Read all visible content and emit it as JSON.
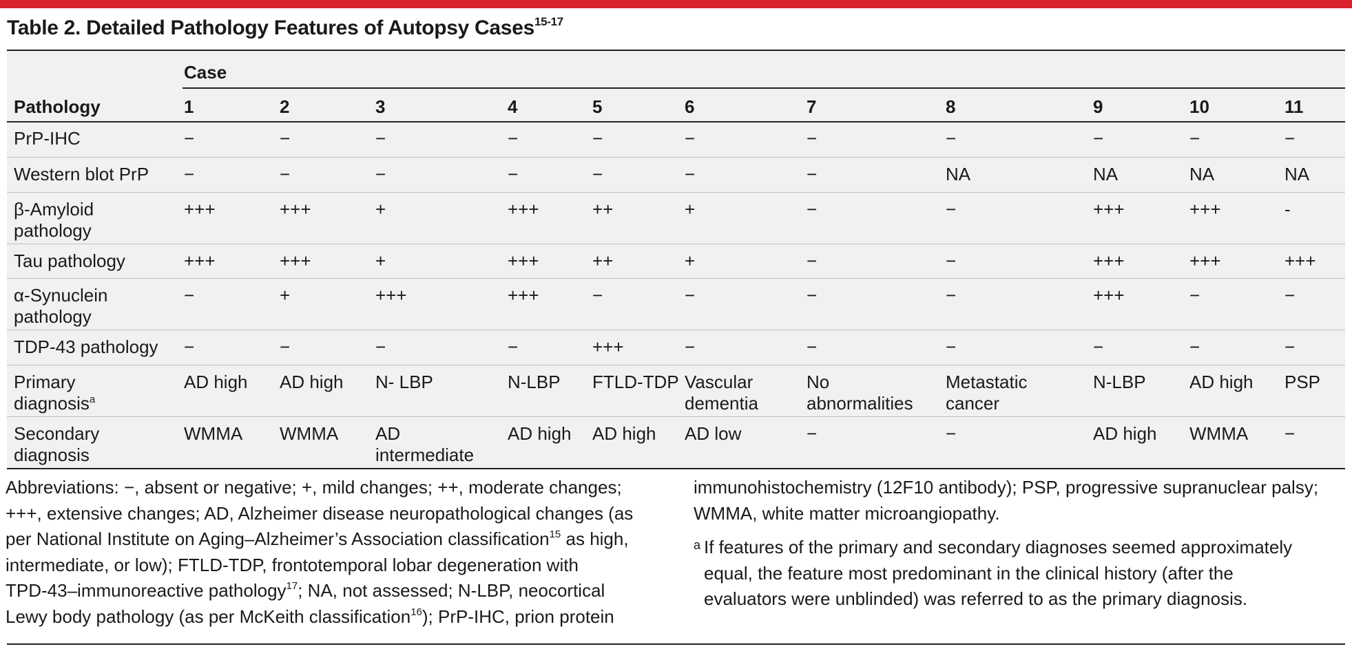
{
  "title": {
    "text": "Table 2. Detailed Pathology Features of Autopsy Cases",
    "sup": "15-17"
  },
  "table": {
    "stub_header": "Pathology",
    "spanner": "Case",
    "columns": [
      "1",
      "2",
      "3",
      "4",
      "5",
      "6",
      "7",
      "8",
      "9",
      "10",
      "11"
    ],
    "rows": [
      {
        "label": [
          "PrP-IHC"
        ],
        "cells": [
          [
            "−"
          ],
          [
            "−"
          ],
          [
            "−"
          ],
          [
            "−"
          ],
          [
            "−"
          ],
          [
            "−"
          ],
          [
            "−"
          ],
          [
            "−"
          ],
          [
            "−"
          ],
          [
            "−"
          ],
          [
            "−"
          ]
        ]
      },
      {
        "label": [
          "Western blot PrP"
        ],
        "cells": [
          [
            "−"
          ],
          [
            "−"
          ],
          [
            "−"
          ],
          [
            "−"
          ],
          [
            "−"
          ],
          [
            "−"
          ],
          [
            "−"
          ],
          [
            "NA"
          ],
          [
            "NA"
          ],
          [
            "NA"
          ],
          [
            "NA"
          ]
        ]
      },
      {
        "label": [
          "β-Amyloid",
          "pathology"
        ],
        "cells": [
          [
            "+++"
          ],
          [
            "+++"
          ],
          [
            "+"
          ],
          [
            "+++"
          ],
          [
            "++"
          ],
          [
            "+"
          ],
          [
            "−"
          ],
          [
            "−"
          ],
          [
            "+++"
          ],
          [
            "+++"
          ],
          [
            "-"
          ]
        ]
      },
      {
        "label": [
          "Tau pathology"
        ],
        "cells": [
          [
            "+++"
          ],
          [
            "+++"
          ],
          [
            "+"
          ],
          [
            "+++"
          ],
          [
            "++"
          ],
          [
            "+"
          ],
          [
            "−"
          ],
          [
            "−"
          ],
          [
            "+++"
          ],
          [
            "+++"
          ],
          [
            "+++"
          ]
        ]
      },
      {
        "label": [
          "α-Synuclein",
          "pathology"
        ],
        "cells": [
          [
            "−"
          ],
          [
            "+"
          ],
          [
            "+++"
          ],
          [
            "+++"
          ],
          [
            "−"
          ],
          [
            "−"
          ],
          [
            "−"
          ],
          [
            "−"
          ],
          [
            "+++"
          ],
          [
            "−"
          ],
          [
            "−"
          ]
        ]
      },
      {
        "label": [
          "TDP-43 pathology"
        ],
        "cells": [
          [
            "−"
          ],
          [
            "−"
          ],
          [
            "−"
          ],
          [
            "−"
          ],
          [
            "+++"
          ],
          [
            "−"
          ],
          [
            "−"
          ],
          [
            "−"
          ],
          [
            "−"
          ],
          [
            "−"
          ],
          [
            "−"
          ]
        ]
      },
      {
        "label": [
          "Primary",
          "diagnosis"
        ],
        "label_sup": "a",
        "cells": [
          [
            "AD high"
          ],
          [
            "AD high"
          ],
          [
            "N- LBP"
          ],
          [
            "N-LBP"
          ],
          [
            "FTLD-TDP"
          ],
          [
            "Vascular",
            "dementia"
          ],
          [
            "No",
            "abnormalities"
          ],
          [
            "Metastatic",
            "cancer"
          ],
          [
            "N-LBP"
          ],
          [
            "AD high"
          ],
          [
            "PSP"
          ]
        ]
      },
      {
        "label": [
          "Secondary",
          "diagnosis"
        ],
        "cells": [
          [
            "WMMA"
          ],
          [
            "WMMA"
          ],
          [
            "AD",
            "intermediate"
          ],
          [
            "AD high"
          ],
          [
            "AD high"
          ],
          [
            "AD low"
          ],
          [
            "−"
          ],
          [
            "−"
          ],
          [
            "AD high"
          ],
          [
            "WMMA"
          ],
          [
            "−"
          ]
        ]
      }
    ]
  },
  "footnotes": {
    "abbreviations": [
      {
        "t": "Abbreviations: −, absent or negative; +, mild changes; ++, moderate changes;"
      },
      {
        "t": "+++, extensive changes; AD, Alzheimer disease neuropathological changes (as"
      },
      {
        "t": "per National Institute on Aging–Alzheimer’s Association classification",
        "sup": "15",
        "t2": " as high,"
      },
      {
        "t": "intermediate, or low); FTLD-TDP, frontotemporal lobar degeneration with"
      },
      {
        "t": "TPD-43–immunoreactive pathology",
        "sup": "17",
        "t2": "; NA, not assessed; N-LBP, neocortical"
      },
      {
        "t": "Lewy body pathology (as per McKeith classification",
        "sup": "16",
        "t2": "); PrP-IHC, prion protein"
      },
      {
        "t": "immunohistochemistry (12F10 antibody); PSP, progressive supranuclear palsy;"
      },
      {
        "t": "WMMA, white matter microangiopathy."
      }
    ],
    "note_a": {
      "mark": "a",
      "lines": [
        "If features of the primary and secondary diagnoses seemed approximately",
        "equal, the feature most predominant in the clinical history (after the",
        "evaluators were unblinded) was referred to as the primary diagnosis."
      ]
    }
  },
  "colors": {
    "accent_bar": "#d81f2a",
    "table_background": "#f1f1f1",
    "row_divider": "#bfbfbf"
  }
}
